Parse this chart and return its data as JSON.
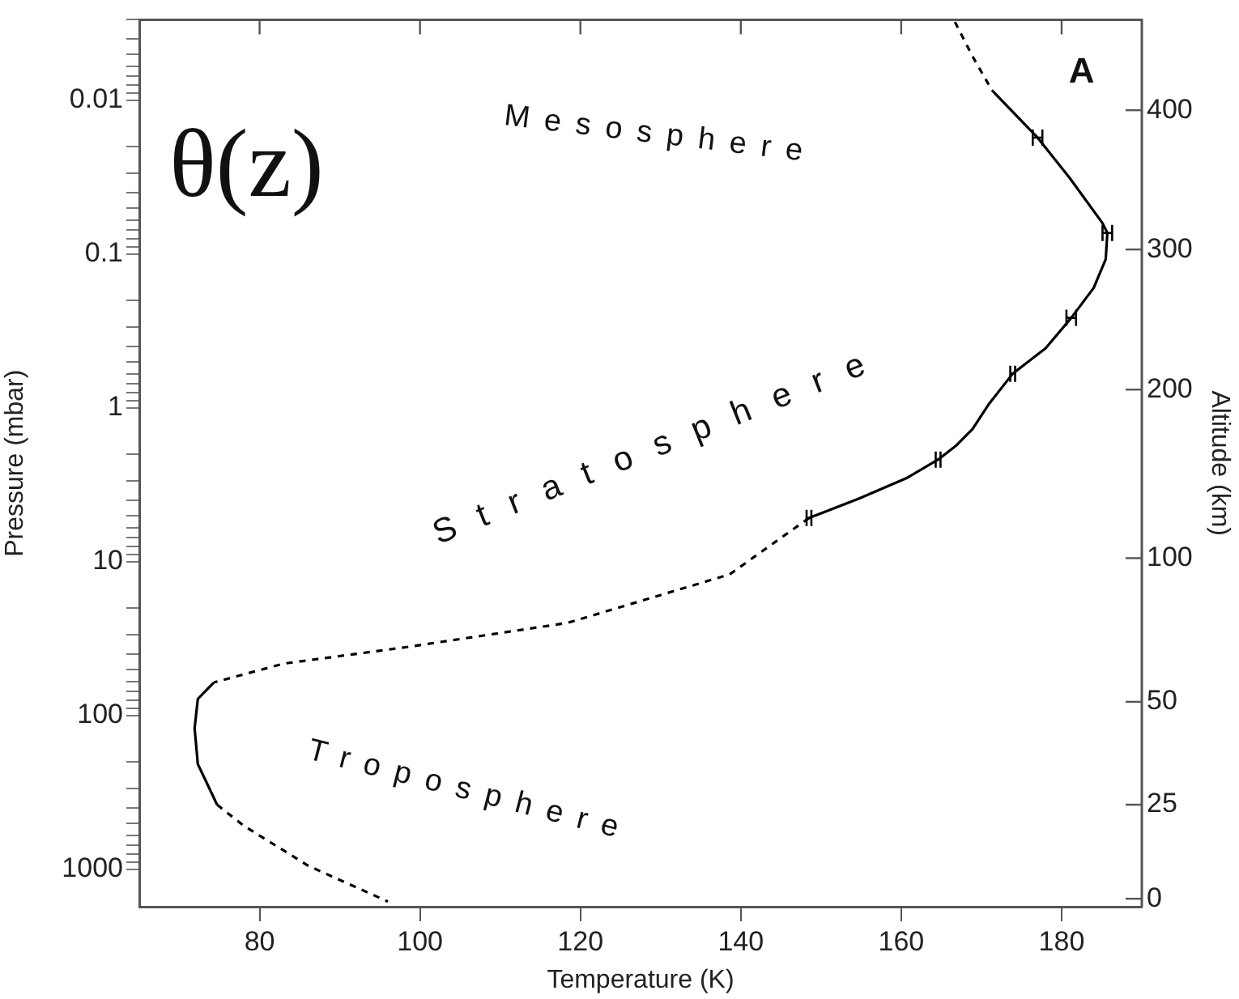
{
  "chart_data": {
    "type": "line",
    "xlabel": "Temperature (K)",
    "ylabel": "Pressure (mbar)",
    "y2label": "Altitude (km)",
    "annotations": [
      "θ(z)",
      "A",
      "Mesosphere",
      "Stratosphere",
      "Troposphere",
      "400",
      "300",
      "200",
      "100",
      "50",
      "25",
      "0"
    ],
    "series": [
      {
        "color": "#000000",
        "line_style": "dashed",
        "x": [
          166.7,
          168.9,
          171.3
        ],
        "values": [
          0.0031,
          0.0052,
          0.0086
        ]
      },
      {
        "color": "#000000",
        "line_style": "solid",
        "x": [
          171.3,
          177.0,
          181.0,
          185.1,
          185.7,
          185.5,
          184.0,
          181.2,
          178.0,
          173.9,
          170.9,
          168.9,
          166.9,
          164.6,
          160.8,
          154.7,
          148.5
        ],
        "values": [
          0.0086,
          0.0175,
          0.032,
          0.063,
          0.073,
          0.108,
          0.166,
          0.26,
          0.41,
          0.6,
          0.95,
          1.37,
          1.75,
          2.17,
          2.84,
          3.9,
          5.2
        ],
        "xerrors": [
          null,
          0.6,
          null,
          null,
          0.6,
          null,
          null,
          0.6,
          null,
          0.3,
          null,
          null,
          null,
          0.3,
          null,
          null,
          0.3
        ]
      },
      {
        "color": "#000000",
        "line_style": "dashed",
        "x": [
          148.5,
          138.6,
          118.4,
          98.2,
          83.0,
          74.3
        ],
        "values": [
          5.2,
          12.1,
          25,
          36,
          46,
          61
        ]
      },
      {
        "color": "#000000",
        "line_style": "solid",
        "x": [
          74.3,
          72.3,
          71.9,
          72.3,
          74.7
        ],
        "values": [
          61,
          78,
          121,
          207,
          380
        ]
      },
      {
        "color": "#000000",
        "line_style": "dashed",
        "x": [
          74.7,
          78.0,
          86.1,
          96.0
        ],
        "values": [
          380,
          520,
          950,
          1620
        ]
      }
    ],
    "xlim": [
      65,
      190
    ],
    "xticks": [
      80,
      100,
      120,
      140,
      160,
      180
    ],
    "ylim": [
      1750,
      0.003
    ],
    "log": "y",
    "yticks": [
      {
        "value": 0.003,
        "label": null
      },
      {
        "value": 0.004,
        "label": null
      },
      {
        "value": 0.005,
        "label": null
      },
      {
        "value": 0.006,
        "label": null
      },
      {
        "value": 0.007,
        "label": null
      },
      {
        "value": 0.008,
        "label": null
      },
      {
        "value": 0.009,
        "label": null
      },
      0.01,
      {
        "value": 0.02,
        "label": null
      },
      {
        "value": 0.03,
        "label": null
      },
      {
        "value": 0.04,
        "label": null
      },
      {
        "value": 0.05,
        "label": null
      },
      {
        "value": 0.06,
        "label": null
      },
      {
        "value": 0.07,
        "label": null
      },
      {
        "value": 0.08,
        "label": null
      },
      {
        "value": 0.09,
        "label": null
      },
      0.1,
      {
        "value": 0.2,
        "label": null
      },
      {
        "value": 0.3,
        "label": null
      },
      {
        "value": 0.4,
        "label": null
      },
      {
        "value": 0.5,
        "label": null
      },
      {
        "value": 0.6,
        "label": null
      },
      {
        "value": 0.7,
        "label": null
      },
      {
        "value": 0.8,
        "label": null
      },
      {
        "value": 0.9,
        "label": null
      },
      1,
      {
        "value": 2,
        "label": null
      },
      {
        "value": 3,
        "label": null
      },
      {
        "value": 4,
        "label": null
      },
      {
        "value": 5,
        "label": null
      },
      {
        "value": 6,
        "label": null
      },
      {
        "value": 7,
        "label": null
      },
      {
        "value": 8,
        "label": null
      },
      {
        "value": 9,
        "label": null
      },
      10,
      {
        "value": 20,
        "label": null
      },
      {
        "value": 30,
        "label": null
      },
      {
        "value": 40,
        "label": null
      },
      {
        "value": 50,
        "label": null
      },
      {
        "value": 60,
        "label": null
      },
      {
        "value": 70,
        "label": null
      },
      {
        "value": 80,
        "label": null
      },
      {
        "value": 90,
        "label": null
      },
      100,
      {
        "value": 200,
        "label": null
      },
      {
        "value": 300,
        "label": null
      },
      {
        "value": 400,
        "label": null
      },
      {
        "value": 500,
        "label": null
      },
      {
        "value": 600,
        "label": null
      },
      {
        "value": 700,
        "label": null
      },
      {
        "value": 800,
        "label": null
      },
      {
        "value": 900,
        "label": null
      },
      1000
    ],
    "grid": false,
    "legend": false,
    "marker": "none"
  }
}
